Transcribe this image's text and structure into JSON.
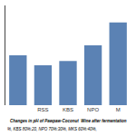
{
  "chart_data": {
    "type": "bar",
    "title": "Changes in pH of Pawpaw-Coconut  Wine after fermentation",
    "subtitle": "%, KBS 80%:20, NPO 70%:30%, MKS 60%:40%,",
    "categories": [
      null,
      "RSS",
      "KBS",
      "NPO",
      "M"
    ],
    "values": [
      3.5,
      2.8,
      3.1,
      4.2,
      5.8
    ],
    "color": "#5b82b4",
    "ylim": [
      0,
      7
    ],
    "yticks": [],
    "grid": false,
    "tick_labels": "x"
  }
}
